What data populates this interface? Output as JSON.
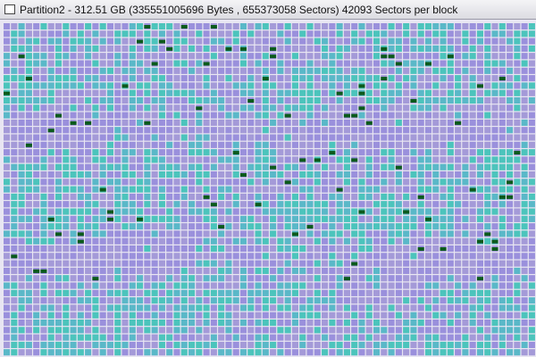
{
  "window": {
    "title": "Partition2 - 312.51 GB (335551005696 Bytes , 655373058 Sectors) 42093 Sectors per block"
  }
}
